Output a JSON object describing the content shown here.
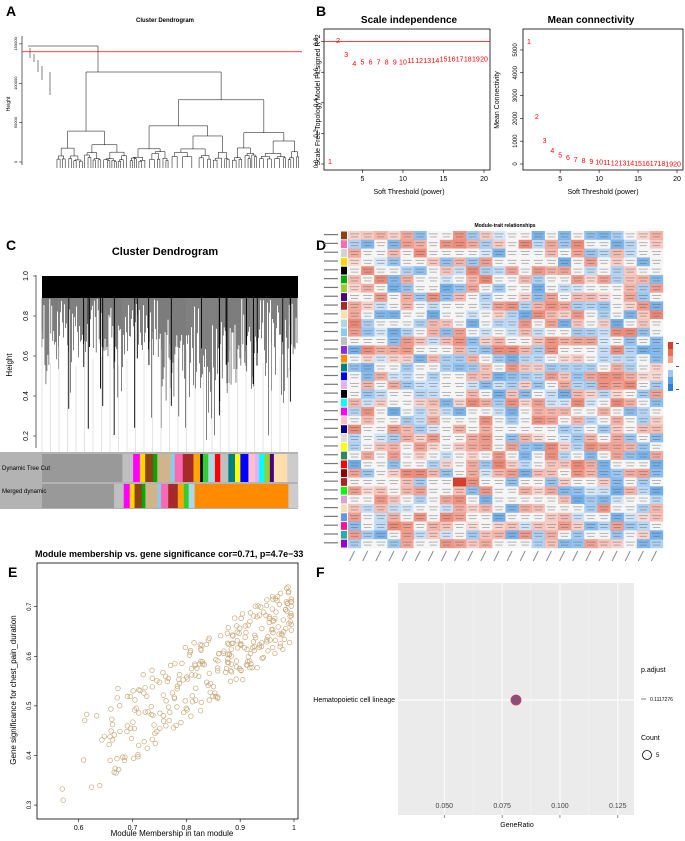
{
  "panel_labels": [
    "A",
    "B",
    "C",
    "D",
    "E",
    "F"
  ],
  "colors": {
    "red": "#ff0000",
    "orange": "#ff8c00",
    "tan_point": "#c8a878",
    "pink_border": "#c04060",
    "heat_red": "#e8705a",
    "heat_blue": "#3a8fe0"
  },
  "chart_data": [
    {
      "id": "A",
      "type": "dendrogram",
      "title": "Cluster Dendrogram",
      "ylabel": "Height",
      "yticks": [
        0,
        50000,
        100000,
        150000
      ],
      "cut_height": 140000
    },
    {
      "id": "B1",
      "type": "scatter",
      "title": "Scale independence",
      "xlabel": "Soft Threshold (power)",
      "ylabel": "Scale Free Topology Model Fit,signed R^2",
      "xticks": [
        5,
        10,
        15,
        20
      ],
      "yticks": [
        0.0,
        0.2,
        0.4,
        0.6,
        0.8
      ],
      "xlim": [
        1,
        20
      ],
      "ylim": [
        0,
        0.85
      ],
      "threshold": 0.8,
      "x": [
        1,
        2,
        3,
        4,
        5,
        6,
        7,
        8,
        9,
        10,
        11,
        12,
        13,
        14,
        15,
        16,
        17,
        18,
        19,
        20
      ],
      "y": [
        0.02,
        0.81,
        0.72,
        0.66,
        0.67,
        0.67,
        0.67,
        0.67,
        0.67,
        0.67,
        0.68,
        0.68,
        0.68,
        0.68,
        0.69,
        0.69,
        0.69,
        0.69,
        0.69,
        0.69
      ]
    },
    {
      "id": "B2",
      "type": "scatter",
      "title": "Mean connectivity",
      "xlabel": "Soft Threshold (power)",
      "ylabel": "Mean Connectivity",
      "xticks": [
        5,
        10,
        15,
        20
      ],
      "yticks": [
        0,
        1000,
        2000,
        3000,
        4000,
        5000
      ],
      "xlim": [
        1,
        20
      ],
      "ylim": [
        0,
        5700
      ],
      "x": [
        1,
        2,
        3,
        4,
        5,
        6,
        7,
        8,
        9,
        10,
        11,
        12,
        13,
        14,
        15,
        16,
        17,
        18,
        19,
        20
      ],
      "y": [
        5400,
        2100,
        1050,
        620,
        420,
        300,
        230,
        180,
        140,
        110,
        90,
        75,
        65,
        55,
        48,
        42,
        37,
        33,
        29,
        26
      ]
    },
    {
      "id": "C",
      "type": "dendrogram",
      "title": "Cluster Dendrogram",
      "ylabel": "Height",
      "yticks": [
        0.2,
        0.4,
        0.6,
        0.8,
        1.0
      ],
      "color_rows": [
        "Dynamic Tree Cut",
        "Merged dynamic"
      ]
    },
    {
      "id": "D",
      "type": "heatmap",
      "title": "Module-trait relationships",
      "rows": 36,
      "cols": 24
    },
    {
      "id": "E",
      "type": "scatter",
      "title": "Module membership vs. gene significance",
      "stat": "cor=0.71, p=4.7e−33",
      "xlabel": "Module Membership in tan module",
      "ylabel": "Gene significance for  chest_pain_duration",
      "xticks": [
        0.6,
        0.7,
        0.8,
        0.9,
        1.0
      ],
      "yticks": [
        0.3,
        0.4,
        0.5,
        0.6,
        0.7
      ],
      "xlim": [
        0.53,
        1.0
      ],
      "ylim": [
        0.28,
        0.78
      ],
      "n_points": 300,
      "cor": 0.71
    },
    {
      "id": "F",
      "type": "dot",
      "categories": [
        "Hematopoietic cell lineage"
      ],
      "x": [
        0.081
      ],
      "xlabel": "GeneRatio",
      "xticks": [
        0.05,
        0.075,
        0.1,
        0.125
      ],
      "xtick_labels": [
        "0.050",
        "0.075",
        "0.100",
        "0.125"
      ],
      "xlim": [
        0.03,
        0.132
      ],
      "legend_padj_title": "p.adjust",
      "legend_padj_value": "0.1117276",
      "legend_count_title": "Count",
      "legend_count_value": "5"
    }
  ]
}
